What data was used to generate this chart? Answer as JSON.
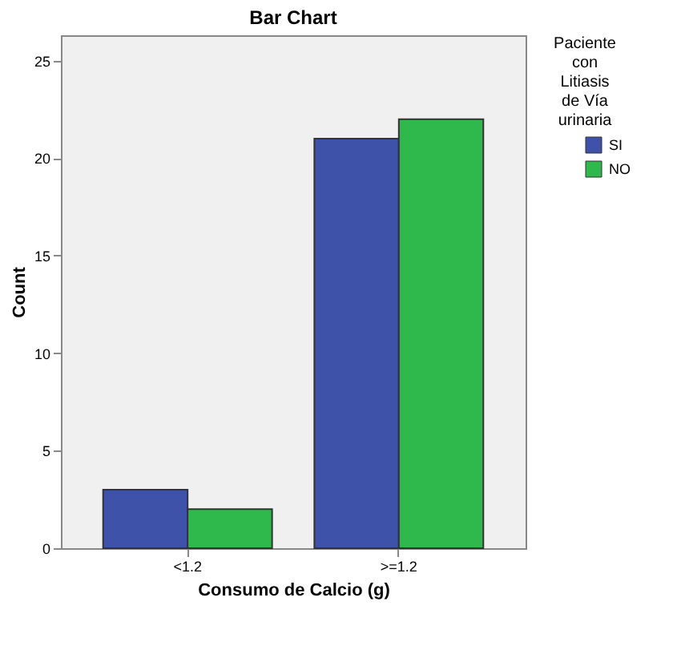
{
  "chart_data": {
    "type": "bar",
    "title": "Bar Chart",
    "xlabel": "Consumo de Calcio (g)",
    "ylabel": "Count",
    "legend_title": "Paciente con Litiasis de Vía urinaria",
    "categories": [
      "<1.2",
      ">=1.2"
    ],
    "series": [
      {
        "name": "SI",
        "color": "#3d52a8",
        "values": [
          3,
          21
        ]
      },
      {
        "name": "NO",
        "color": "#2fb84b",
        "values": [
          2,
          22
        ]
      }
    ],
    "ylim": [
      0,
      26.3
    ],
    "yticks": [
      0,
      5,
      10,
      15,
      20,
      25
    ],
    "grid": false,
    "legend": "top right"
  }
}
